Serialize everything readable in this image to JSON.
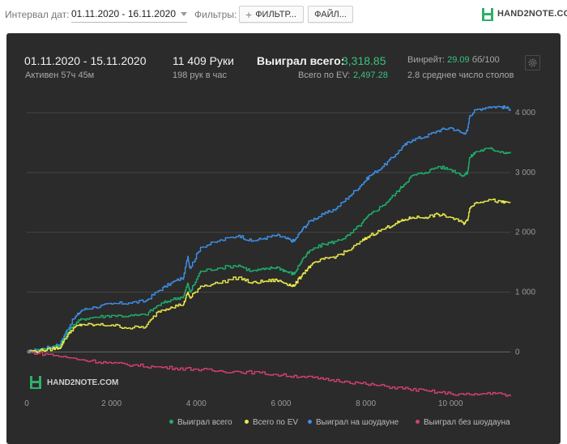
{
  "toolbar": {
    "interval_label": "Интервал дат:",
    "interval_value": "01.11.2020 - 16.11.2020",
    "filters_label": "Фильтры:",
    "filter_button_label": "ФИЛЬТР...",
    "file_button_label": "ФАЙЛ...",
    "logo_text": "HAND2NOTE.COM"
  },
  "summary": {
    "date_range": "01.11.2020 - 15.11.2020",
    "active_time": "Активен 57ч 45м",
    "hands": "11 409 Руки",
    "hands_per_hour": "198 рук в час",
    "won_total_label": "Выиграл всего:",
    "won_total_value": "3,318.85",
    "ev_total_label": "Всего по EV:",
    "ev_total_value": "2,497.28",
    "winrate_label": "Винрейт:",
    "winrate_value": "29.09",
    "winrate_unit": "бб/100",
    "avg_tables": "2.8 среднее число столов"
  },
  "colors": {
    "panel_bg": "#2b2b2b",
    "grid": "#454545",
    "won_total": "#1fae6a",
    "ev_total": "#e9e94a",
    "showdown": "#3d8fe6",
    "non_showdown": "#d5406f"
  },
  "chart_data": {
    "type": "line",
    "x_ticks": [
      "0",
      "2 000",
      "4 000",
      "6 000",
      "8 000",
      "10 000"
    ],
    "y_ticks": [
      "0",
      "1 000",
      "2 000",
      "3 000",
      "4 000"
    ],
    "xlim": [
      0,
      11409
    ],
    "ylim": [
      -700,
      4300
    ],
    "grid": true,
    "legend_position": "bottom-right",
    "watermark": "HAND2NOTE.COM",
    "series": [
      {
        "name": "Выиграл на шоудауне",
        "color": "#3d8fe6",
        "x": [
          0,
          300,
          600,
          800,
          900,
          1100,
          1300,
          1600,
          2000,
          2400,
          2800,
          3100,
          3400,
          3700,
          3800,
          3850,
          4100,
          4500,
          5000,
          5300,
          5600,
          5900,
          6100,
          6300,
          6500,
          6700,
          7000,
          7300,
          7600,
          7900,
          8100,
          8400,
          8700,
          8900,
          9100,
          9400,
          9700,
          10000,
          10300,
          10400,
          10450,
          10600,
          10900,
          11200,
          11409
        ],
        "y": [
          0,
          40,
          90,
          140,
          300,
          550,
          700,
          750,
          800,
          820,
          850,
          1020,
          1150,
          1250,
          1600,
          1400,
          1750,
          1850,
          1950,
          1850,
          1900,
          1950,
          1900,
          1850,
          2050,
          2200,
          2300,
          2400,
          2600,
          2800,
          2950,
          3100,
          3300,
          3450,
          3550,
          3600,
          3700,
          3750,
          3650,
          3700,
          3950,
          4050,
          4100,
          4100,
          4060
        ]
      },
      {
        "name": "Выиграл всего",
        "color": "#1fae6a",
        "x": [
          0,
          300,
          600,
          800,
          900,
          1100,
          1300,
          1600,
          2000,
          2400,
          2800,
          3100,
          3400,
          3700,
          3800,
          3850,
          4100,
          4500,
          5000,
          5300,
          5600,
          5900,
          6100,
          6300,
          6500,
          6700,
          7000,
          7300,
          7600,
          7900,
          8100,
          8400,
          8700,
          8900,
          9100,
          9400,
          9700,
          10000,
          10300,
          10400,
          10450,
          10600,
          10900,
          11200,
          11409
        ],
        "y": [
          0,
          30,
          70,
          110,
          250,
          450,
          550,
          580,
          610,
          600,
          620,
          780,
          870,
          930,
          1150,
          1000,
          1350,
          1400,
          1450,
          1350,
          1380,
          1420,
          1350,
          1300,
          1550,
          1700,
          1800,
          1850,
          1950,
          2150,
          2300,
          2450,
          2650,
          2800,
          2950,
          3000,
          3100,
          3050,
          2950,
          3000,
          3250,
          3350,
          3400,
          3350,
          3318
        ]
      },
      {
        "name": "Всего по EV",
        "color": "#e9e94a",
        "x": [
          0,
          300,
          600,
          800,
          900,
          1100,
          1300,
          1600,
          2000,
          2400,
          2800,
          3100,
          3400,
          3700,
          3800,
          3850,
          4100,
          4500,
          5000,
          5300,
          5600,
          5900,
          6100,
          6300,
          6500,
          6700,
          7000,
          7300,
          7600,
          7900,
          8100,
          8400,
          8700,
          8900,
          9100,
          9400,
          9700,
          10000,
          10300,
          10400,
          10450,
          10600,
          10900,
          11200,
          11409
        ],
        "y": [
          0,
          20,
          50,
          80,
          220,
          400,
          460,
          450,
          450,
          400,
          420,
          680,
          750,
          800,
          1000,
          900,
          1100,
          1150,
          1250,
          1150,
          1180,
          1200,
          1150,
          1100,
          1300,
          1450,
          1550,
          1600,
          1700,
          1850,
          1950,
          2050,
          2150,
          2200,
          2250,
          2250,
          2300,
          2250,
          2150,
          2200,
          2400,
          2500,
          2550,
          2500,
          2497
        ]
      },
      {
        "name": "Выиграл без шоудауна",
        "color": "#d5406f",
        "x": [
          0,
          500,
          1000,
          1500,
          2000,
          2500,
          3000,
          3500,
          4000,
          4500,
          5000,
          5500,
          6000,
          6500,
          7000,
          7500,
          8000,
          8500,
          9000,
          9500,
          10000,
          10500,
          11000,
          11409
        ],
        "y": [
          0,
          -40,
          -100,
          -150,
          -190,
          -220,
          -250,
          -270,
          -290,
          -320,
          -330,
          -350,
          -390,
          -410,
          -460,
          -490,
          -540,
          -580,
          -620,
          -660,
          -700,
          -720,
          -680,
          -740
        ]
      }
    ]
  }
}
